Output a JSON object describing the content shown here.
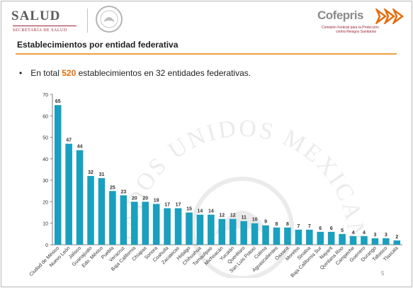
{
  "header": {
    "salud_title": "SALUD",
    "salud_subtitle": "SECRETARÍA DE SALUD",
    "cofepris_title": "Cofepris",
    "cofepris_sub1": "Comisión Federal para la Protección",
    "cofepris_sub2": "contra Riesgos Sanitarios"
  },
  "slide": {
    "title": "Establecimientos por entidad federativa",
    "bullet_before": "En total ",
    "bullet_highlight": "520",
    "bullet_after": " establecimientos en 32 entidades federativas.",
    "page_number": "5",
    "watermark_text": "ESTADOS UNIDOS MEXICANOS"
  },
  "colors": {
    "bar": "#1aa0bf",
    "highlight": "#e46c0a",
    "rule": "#f0a040",
    "brand_red": "#9b2335"
  },
  "chart_data": {
    "type": "bar",
    "title": "",
    "xlabel": "",
    "ylabel": "",
    "ylim": [
      0,
      70
    ],
    "yticks": [
      0,
      10,
      20,
      30,
      40,
      50,
      60,
      70
    ],
    "grid": false,
    "legend": "none",
    "categories": [
      "Ciudad de México",
      "Nuevo León",
      "Jalisco",
      "Guanajuato",
      "Edo. México",
      "Puebla",
      "Veracruz",
      "Baja California",
      "Chiapas",
      "Sonora",
      "Coahuila",
      "Zacatecas",
      "Hidalgo",
      "Chihuahua",
      "Tamaulipas",
      "Michoacán",
      "Yucatán",
      "Querétaro",
      "San Luis Potosí",
      "Colima",
      "Aguascalientes",
      "Oaxaca",
      "Morelos",
      "Sinaloa",
      "Baja California Sur",
      "Nayarit",
      "Quintana Roo",
      "Campeche",
      "Guerrero",
      "Durango",
      "Tabasco",
      "Tlaxcala"
    ],
    "values": [
      65,
      47,
      44,
      32,
      31,
      25,
      23,
      20,
      20,
      19,
      17,
      17,
      15,
      14,
      14,
      12,
      12,
      11,
      10,
      9,
      8,
      8,
      7,
      7,
      6,
      6,
      5,
      4,
      4,
      3,
      3,
      2
    ]
  }
}
